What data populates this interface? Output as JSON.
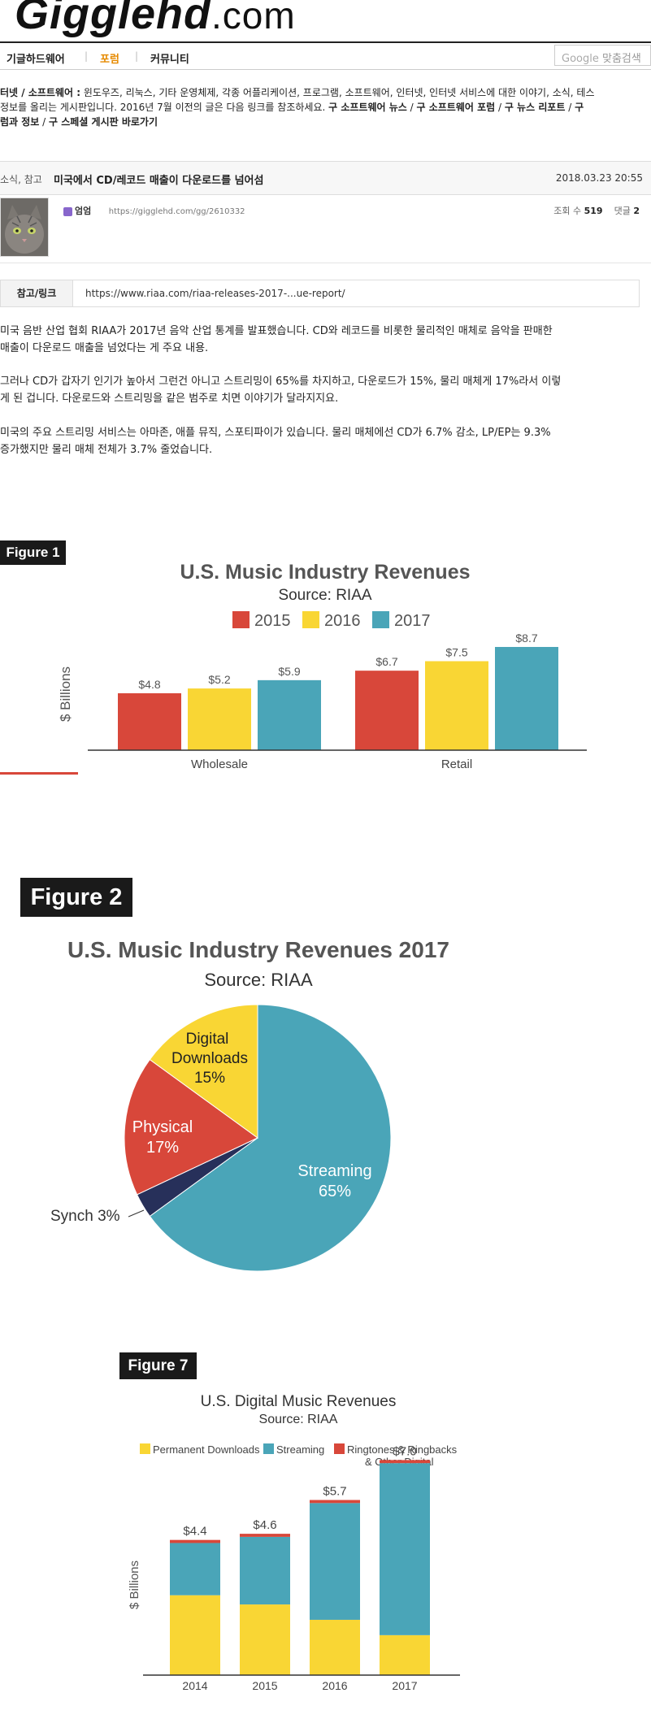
{
  "site": {
    "logo_main": "Gigglehd",
    "logo_suffix": ".com"
  },
  "nav": {
    "items": [
      "기글하드웨어",
      "포럼",
      "커뮤니티"
    ],
    "active_index": 1,
    "active_color": "#e68a00"
  },
  "search": {
    "google_label": "Google",
    "button_label": "맞춤검색"
  },
  "board_description": {
    "prefix": "터넷 / 소프트웨어 :",
    "line1": " 윈도우즈, 리눅스, 기타 운영체제, 각종 어플리케이션, 프로그램, 소프트웨어, 인터넷, 인터넷 서비스에 대한 이야기, 소식, 테스",
    "line2_text": "정보를 올리는 게시판입니다. 2016년 7월 이전의 글은 다음 링크를 참조하세요. ",
    "link1": "구 소프트웨어 뉴스",
    "link2": "구 소프트웨어 포럼",
    "link3": "구 뉴스 리포트",
    "line3_start": "럼과 정보",
    "link4": "구 스페셜 게시판 바로가기",
    "separator": " / "
  },
  "post": {
    "category": "소식, 참고",
    "title": "미국에서 CD/레코드 매출이 다운로드를 넘어섬",
    "date": "2018.03.23 20:55",
    "author": "엄엄",
    "short_url": "https://gigglehd.com/gg/2610332",
    "views_label": "조회 수",
    "views": "519",
    "comments_label": "댓글",
    "comments": "2"
  },
  "reference": {
    "label": "참고/링크",
    "url": "https://www.riaa.com/riaa-releases-2017-...ue-report/"
  },
  "body": {
    "p1_l1": "미국 음반 산업 협회 RIAA가 2017년 음악 산업 통계를 발표했습니다. CD와 레코드를 비롯한 물리적인 매체로 음악을 판매한",
    "p1_l2": "매출이 다운로드 매출을 넘었다는 게 주요 내용.",
    "p2_l1": "그러나 CD가 갑자기 인기가 높아서 그런건 아니고 스트리밍이 65%를 차지하고, 다운로드가 15%, 물리 매체게 17%라서 이렇",
    "p2_l2": "게 된 겁니다. 다운로드와 스트리밍을 같은 범주로 치면 이야기가 달라지지요.",
    "p3_l1": "미국의 주요 스트리밍 서비스는 아마존, 애플 뮤직, 스포티파이가 있습니다. 물리 매체에선 CD가 6.7% 감소, LP/EP는 9.3%",
    "p3_l2": "증가했지만 물리 매체 전체가 3.7% 줄었습니다."
  },
  "colors": {
    "red": "#d8473a",
    "yellow": "#f9d634",
    "teal": "#4aa5b8",
    "navy": "#27305a",
    "axis": "#333333"
  },
  "chart_data": [
    {
      "type": "bar",
      "badge": "Figure 1",
      "title": "U.S. Music Industry Revenues",
      "subtitle": "Source: RIAA",
      "categories": [
        "Wholesale",
        "Retail"
      ],
      "series": [
        {
          "name": "2015",
          "values": [
            4.8,
            6.7
          ],
          "labels": [
            "$4.8",
            "$6.7"
          ]
        },
        {
          "name": "2016",
          "values": [
            5.2,
            7.5
          ],
          "labels": [
            "$5.2",
            "$7.5"
          ]
        },
        {
          "name": "2017",
          "values": [
            5.9,
            8.7
          ],
          "labels": [
            "$5.9",
            "$8.7"
          ]
        }
      ],
      "ylabel": "$ Billions",
      "legend": "top",
      "grid": false
    },
    {
      "type": "pie",
      "badge": "Figure 2",
      "title": "U.S. Music Industry Revenues 2017",
      "subtitle": "Source: RIAA",
      "slices": [
        {
          "name": "Streaming",
          "value": 65,
          "label": "65%"
        },
        {
          "name": "Synch",
          "value": 3,
          "label": "3%"
        },
        {
          "name": "Physical",
          "value": 17,
          "label": "17%"
        },
        {
          "name": "Digital Downloads",
          "value": 15,
          "label": "15%"
        }
      ]
    },
    {
      "type": "bar",
      "stacked": true,
      "badge": "Figure 7",
      "title": "U.S. Digital Music Revenues",
      "subtitle": "Source: RIAA",
      "categories": [
        "2014",
        "2015",
        "2016",
        "2017"
      ],
      "series": [
        {
          "name": "Permanent Downloads",
          "values": [
            2.6,
            2.3,
            1.8,
            1.3
          ]
        },
        {
          "name": "Streaming",
          "values": [
            1.7,
            2.2,
            3.8,
            5.6
          ]
        },
        {
          "name": "Ringtones & Ringbacks & Other Digital",
          "values": [
            0.1,
            0.1,
            0.1,
            0.1
          ]
        }
      ],
      "totals": [
        "$4.4",
        "$4.6",
        "$5.7",
        "$7.0"
      ],
      "ylabel": "$ Billions",
      "legend": "top",
      "grid": false
    }
  ]
}
